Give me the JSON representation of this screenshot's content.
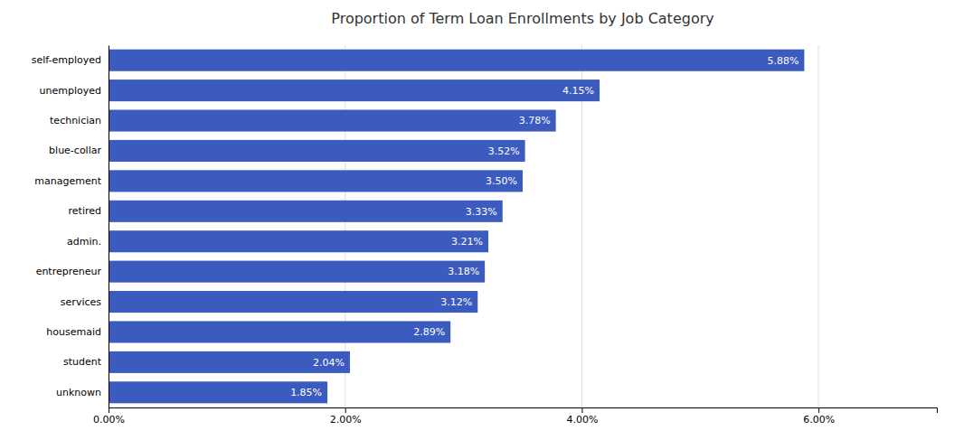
{
  "chart_data": {
    "type": "bar",
    "orientation": "horizontal",
    "title": "Proportion of Term Loan Enrollments by Job Category",
    "categories": [
      "self-employed",
      "unemployed",
      "technician",
      "blue-collar",
      "management",
      "retired",
      "admin.",
      "entrepreneur",
      "services",
      "housemaid",
      "student",
      "unknown"
    ],
    "values": [
      5.88,
      4.15,
      3.78,
      3.52,
      3.5,
      3.33,
      3.21,
      3.18,
      3.12,
      2.89,
      2.04,
      1.85
    ],
    "value_labels": [
      "5.88%",
      "4.15%",
      "3.78%",
      "3.52%",
      "3.50%",
      "3.33%",
      "3.21%",
      "3.18%",
      "3.12%",
      "2.89%",
      "2.04%",
      "1.85%"
    ],
    "data_labels": true,
    "color": "#3c5bbf",
    "xlim": [
      0,
      7.0
    ],
    "xticks": [
      {
        "value": 0,
        "label": "0.00%"
      },
      {
        "value": 2.0,
        "label": "2.00%"
      },
      {
        "value": 4.0,
        "label": "4.00%"
      },
      {
        "value": 6.0,
        "label": "6.00%"
      }
    ],
    "grid": true
  }
}
